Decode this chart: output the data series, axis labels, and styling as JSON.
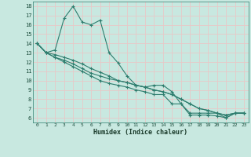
{
  "xlabel": "Humidex (Indice chaleur)",
  "bg_color": "#c8e8e0",
  "grid_color": "#e8c8c8",
  "line_color": "#2e7d6e",
  "xlim": [
    -0.5,
    23.5
  ],
  "ylim": [
    5.5,
    18.5
  ],
  "xticks": [
    0,
    1,
    2,
    3,
    4,
    5,
    6,
    7,
    8,
    9,
    10,
    11,
    12,
    13,
    14,
    15,
    16,
    17,
    18,
    19,
    20,
    21,
    22,
    23
  ],
  "yticks": [
    6,
    7,
    8,
    9,
    10,
    11,
    12,
    13,
    14,
    15,
    16,
    17,
    18
  ],
  "series1": [
    [
      0,
      14.0
    ],
    [
      1,
      13.0
    ],
    [
      2,
      13.3
    ],
    [
      3,
      16.7
    ],
    [
      4,
      18.0
    ],
    [
      5,
      16.3
    ],
    [
      6,
      16.0
    ],
    [
      7,
      16.5
    ],
    [
      8,
      13.0
    ],
    [
      9,
      11.9
    ],
    [
      10,
      10.5
    ],
    [
      11,
      9.5
    ],
    [
      12,
      9.3
    ],
    [
      13,
      9.5
    ],
    [
      14,
      9.5
    ],
    [
      15,
      8.8
    ],
    [
      16,
      7.5
    ],
    [
      17,
      6.3
    ],
    [
      18,
      6.3
    ],
    [
      19,
      6.3
    ],
    [
      20,
      6.2
    ],
    [
      21,
      6.0
    ],
    [
      22,
      6.5
    ],
    [
      23,
      6.5
    ]
  ],
  "series2": [
    [
      0,
      14.0
    ],
    [
      1,
      13.0
    ],
    [
      2,
      12.5
    ],
    [
      3,
      12.2
    ],
    [
      4,
      11.8
    ],
    [
      5,
      11.3
    ],
    [
      6,
      10.8
    ],
    [
      7,
      10.5
    ],
    [
      8,
      10.2
    ],
    [
      9,
      10.0
    ],
    [
      10,
      9.8
    ],
    [
      11,
      9.5
    ],
    [
      12,
      9.3
    ],
    [
      13,
      9.0
    ],
    [
      14,
      8.8
    ],
    [
      15,
      8.5
    ],
    [
      16,
      8.0
    ],
    [
      17,
      7.5
    ],
    [
      18,
      7.0
    ],
    [
      19,
      6.8
    ],
    [
      20,
      6.5
    ],
    [
      21,
      6.3
    ],
    [
      22,
      6.5
    ],
    [
      23,
      6.5
    ]
  ],
  "series3": [
    [
      0,
      14.0
    ],
    [
      1,
      13.0
    ],
    [
      2,
      12.8
    ],
    [
      3,
      12.5
    ],
    [
      4,
      12.2
    ],
    [
      5,
      11.8
    ],
    [
      6,
      11.3
    ],
    [
      7,
      10.9
    ],
    [
      8,
      10.5
    ],
    [
      9,
      10.0
    ],
    [
      10,
      9.8
    ],
    [
      11,
      9.5
    ],
    [
      12,
      9.3
    ],
    [
      13,
      9.0
    ],
    [
      14,
      8.8
    ],
    [
      15,
      8.5
    ],
    [
      16,
      8.0
    ],
    [
      17,
      7.5
    ],
    [
      18,
      7.0
    ],
    [
      19,
      6.8
    ],
    [
      20,
      6.5
    ],
    [
      21,
      6.3
    ],
    [
      22,
      6.5
    ],
    [
      23,
      6.5
    ]
  ],
  "series4": [
    [
      0,
      14.0
    ],
    [
      1,
      13.0
    ],
    [
      2,
      12.5
    ],
    [
      3,
      12.0
    ],
    [
      4,
      11.5
    ],
    [
      5,
      11.0
    ],
    [
      6,
      10.5
    ],
    [
      7,
      10.0
    ],
    [
      8,
      9.7
    ],
    [
      9,
      9.5
    ],
    [
      10,
      9.3
    ],
    [
      11,
      9.0
    ],
    [
      12,
      8.8
    ],
    [
      13,
      8.5
    ],
    [
      14,
      8.5
    ],
    [
      15,
      7.5
    ],
    [
      16,
      7.5
    ],
    [
      17,
      6.5
    ],
    [
      18,
      6.5
    ],
    [
      19,
      6.5
    ],
    [
      20,
      6.5
    ],
    [
      21,
      6.0
    ],
    [
      22,
      6.5
    ],
    [
      23,
      6.5
    ]
  ]
}
